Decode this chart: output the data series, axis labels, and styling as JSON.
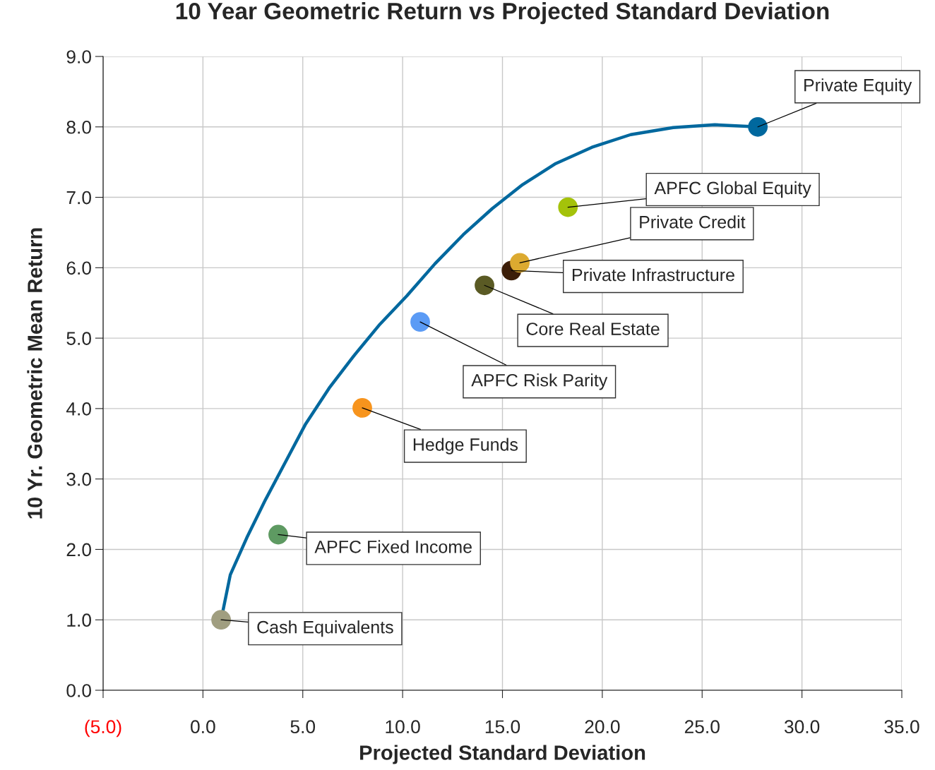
{
  "chart_data": {
    "type": "scatter",
    "title": "10 Year Geometric Return vs Projected Standard Deviation",
    "xlabel": "Projected Standard Deviation",
    "ylabel": "10 Yr. Geometric Mean Return",
    "xlim": [
      -5,
      35
    ],
    "ylim": [
      0,
      9
    ],
    "xticks": [
      {
        "value": -5,
        "label": "(5.0)"
      },
      {
        "value": 0,
        "label": "0.0"
      },
      {
        "value": 5,
        "label": "5.0"
      },
      {
        "value": 10,
        "label": "10.0"
      },
      {
        "value": 15,
        "label": "15.0"
      },
      {
        "value": 20,
        "label": "20.0"
      },
      {
        "value": 25,
        "label": "25.0"
      },
      {
        "value": 30,
        "label": "30.0"
      },
      {
        "value": 35,
        "label": "35.0"
      }
    ],
    "yticks": [
      {
        "value": 0,
        "label": "0.0"
      },
      {
        "value": 1,
        "label": "1.0"
      },
      {
        "value": 2,
        "label": "2.0"
      },
      {
        "value": 3,
        "label": "3.0"
      },
      {
        "value": 4,
        "label": "4.0"
      },
      {
        "value": 5,
        "label": "5.0"
      },
      {
        "value": 6,
        "label": "6.0"
      },
      {
        "value": 7,
        "label": "7.0"
      },
      {
        "value": 8,
        "label": "8.0"
      },
      {
        "value": 9,
        "label": "9.0"
      }
    ],
    "grid": true,
    "series": [
      {
        "type": "line",
        "color": "#00689e",
        "x": [
          0.91,
          1.37,
          2.22,
          3.14,
          4.13,
          5.12,
          6.32,
          7.56,
          8.87,
          10.21,
          11.63,
          13.04,
          14.49,
          16.01,
          17.67,
          19.48,
          21.42,
          23.55,
          25.63,
          27.79
        ],
        "values": [
          1.0,
          1.64,
          2.18,
          2.71,
          3.24,
          3.77,
          4.29,
          4.75,
          5.2,
          5.6,
          6.06,
          6.47,
          6.84,
          7.18,
          7.48,
          7.71,
          7.89,
          7.99,
          8.03,
          8.0
        ]
      },
      {
        "marker": "circle",
        "x": [
          0.91,
          3.77,
          7.98,
          10.88,
          14.1,
          15.45,
          15.87,
          18.28,
          27.79
        ],
        "values": [
          1.0,
          2.21,
          4.01,
          5.23,
          5.75,
          5.96,
          6.07,
          6.86,
          8.0
        ],
        "colors": [
          "#a09e80",
          "#5e9a62",
          "#f7941d",
          "#5b9bf5",
          "#5a5a24",
          "#3c1e08",
          "#dcaa30",
          "#a4c20a",
          "#00689e"
        ]
      }
    ],
    "annotations": [
      {
        "text": "Cash Equivalents",
        "x": 0.91,
        "y": 1.0
      },
      {
        "text": "APFC Fixed Income",
        "x": 3.77,
        "y": 2.21
      },
      {
        "text": "Hedge Funds",
        "x": 7.98,
        "y": 4.01
      },
      {
        "text": "APFC Risk Parity",
        "x": 10.88,
        "y": 5.23
      },
      {
        "text": "Core Real Estate",
        "x": 14.1,
        "y": 5.75
      },
      {
        "text": "Private Infrastructure",
        "x": 15.45,
        "y": 5.96
      },
      {
        "text": "Private Credit",
        "x": 15.87,
        "y": 6.07
      },
      {
        "text": "APFC Global Equity",
        "x": 18.28,
        "y": 6.86
      },
      {
        "text": "Private Equity",
        "x": 27.79,
        "y": 8.0
      }
    ]
  }
}
